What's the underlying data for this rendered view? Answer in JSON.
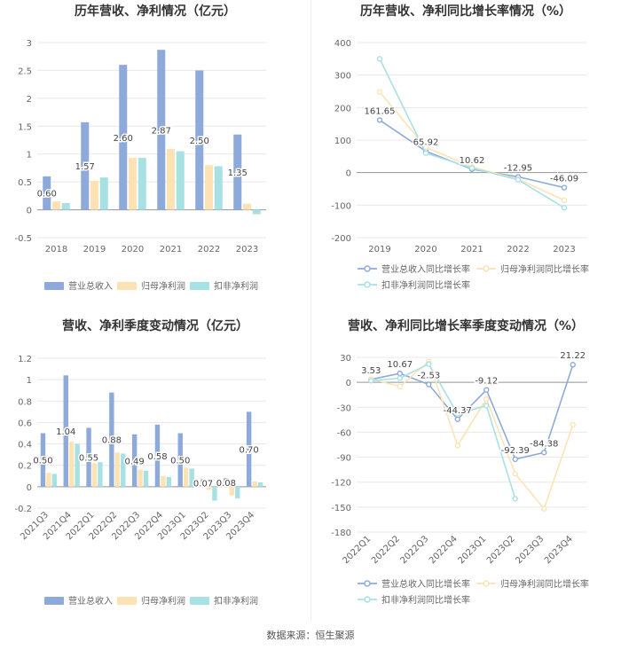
{
  "source_label": "数据来源：恒生聚源",
  "chart_data": [
    {
      "type": "bar",
      "title": "历年营收、净利情况（亿元）",
      "categories": [
        "2018",
        "2019",
        "2020",
        "2021",
        "2022",
        "2023"
      ],
      "ylim": [
        -0.5,
        3
      ],
      "yticks": [
        -0.5,
        0,
        0.5,
        1,
        1.5,
        2,
        2.5,
        3
      ],
      "grid": true,
      "legend_position": "bottom",
      "series": [
        {
          "name": "营业总收入",
          "color": "#8eaadb",
          "values": [
            0.6,
            1.57,
            2.6,
            2.87,
            2.5,
            1.35
          ],
          "data_labels": [
            "0.60",
            "1.57",
            "2.60",
            "2.87",
            "2.50",
            "1.35"
          ]
        },
        {
          "name": "归母净利润",
          "color": "#fde3b4",
          "values": [
            0.15,
            0.52,
            0.93,
            1.09,
            0.8,
            0.11
          ]
        },
        {
          "name": "扣非净利润",
          "color": "#a8e1e4",
          "values": [
            0.12,
            0.58,
            0.93,
            1.05,
            0.78,
            -0.08
          ]
        }
      ]
    },
    {
      "type": "line",
      "title": "历年营收、净利同比增长率情况（%）",
      "categories": [
        "2019",
        "2020",
        "2021",
        "2022",
        "2023"
      ],
      "ylim": [
        -200,
        400
      ],
      "yticks": [
        -200,
        -100,
        0,
        100,
        200,
        300,
        400
      ],
      "grid": true,
      "legend_position": "bottom",
      "series": [
        {
          "name": "营业总收入同比增长率",
          "color": "#8eaadb",
          "values": [
            161.65,
            65.92,
            10.62,
            -12.95,
            -46.09
          ],
          "data_labels": [
            "161.65",
            "65.92",
            "10.62",
            "-12.95",
            "-46.09"
          ]
        },
        {
          "name": "归母净利润同比增长率",
          "color": "#fde3b4",
          "values": [
            248,
            78,
            18,
            -20,
            -85
          ]
        },
        {
          "name": "扣非净利润同比增长率",
          "color": "#a8e1e4",
          "values": [
            350,
            60,
            14,
            -22,
            -108
          ]
        }
      ]
    },
    {
      "type": "bar",
      "title": "营收、净利季度变动情况（亿元）",
      "categories": [
        "2021Q3",
        "2021Q4",
        "2022Q1",
        "2022Q2",
        "2022Q3",
        "2022Q4",
        "2023Q1",
        "2023Q2",
        "2023Q3",
        "2023Q4"
      ],
      "ylim": [
        -0.2,
        1.2
      ],
      "yticks": [
        -0.2,
        0,
        0.2,
        0.4,
        0.6,
        0.8,
        1,
        1.2
      ],
      "grid": true,
      "legend_position": "bottom",
      "series": [
        {
          "name": "营业总收入",
          "color": "#8eaadb",
          "values": [
            0.5,
            1.04,
            0.55,
            0.88,
            0.49,
            0.58,
            0.5,
            0.07,
            0.08,
            0.7
          ],
          "data_labels": [
            "0.50",
            "1.04",
            "0.55",
            "0.88",
            "0.49",
            "0.58",
            "0.50",
            "0.07",
            "0.08",
            "0.70"
          ]
        },
        {
          "name": "归母净利润",
          "color": "#fde3b4",
          "values": [
            0.13,
            0.42,
            0.22,
            0.32,
            0.16,
            0.1,
            0.18,
            -0.03,
            -0.08,
            0.05
          ]
        },
        {
          "name": "扣非净利润",
          "color": "#a8e1e4",
          "values": [
            0.12,
            0.4,
            0.23,
            0.31,
            0.15,
            0.09,
            0.17,
            -0.13,
            -0.11,
            0.04
          ]
        }
      ]
    },
    {
      "type": "line",
      "title": "营收、净利同比增长率季度变动情况（%）",
      "categories": [
        "2022Q1",
        "2022Q2",
        "2022Q3",
        "2022Q4",
        "2023Q1",
        "2023Q2",
        "2023Q3",
        "2023Q4"
      ],
      "ylim": [
        -180,
        30
      ],
      "yticks": [
        -180,
        -150,
        -120,
        -90,
        -60,
        -30,
        0,
        30
      ],
      "grid": true,
      "legend_position": "bottom",
      "series": [
        {
          "name": "营业总收入同比增长率",
          "color": "#8eaadb",
          "values": [
            3.53,
            10.67,
            -2.53,
            -44.37,
            -9.12,
            -92.39,
            -84.38,
            21.22
          ],
          "data_labels": [
            "3.53",
            "10.67",
            "-2.53",
            "-44.37",
            "-9.12",
            "-92.39",
            "-84.38",
            "21.22"
          ]
        },
        {
          "name": "归母净利润同比增长率",
          "color": "#fde3b4",
          "values": [
            4,
            -5,
            25,
            -76,
            -20,
            -110,
            -152,
            -51
          ]
        },
        {
          "name": "扣非净利润同比增长率",
          "color": "#a8e1e4",
          "values": [
            2,
            5,
            22,
            -38,
            -28,
            -140,
            null,
            null
          ]
        }
      ]
    }
  ]
}
